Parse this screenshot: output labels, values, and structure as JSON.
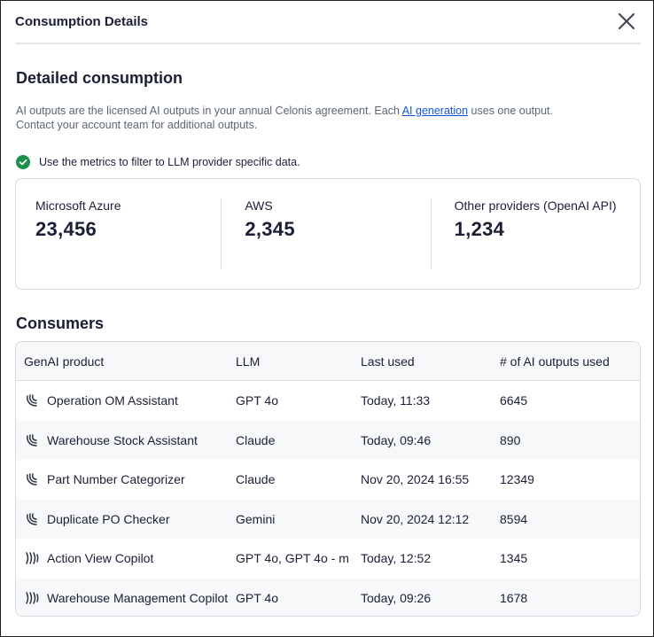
{
  "header": {
    "title": "Consumption Details"
  },
  "section": {
    "title": "Detailed consumption",
    "desc_part1": "AI outputs are the licensed AI outputs in your annual Celonis agreement. Each ",
    "desc_link": "AI generation",
    "desc_part2": " uses one output.",
    "desc_line2": "Contact your account team for additional outputs.",
    "info": "Use the metrics to filter to LLM provider specific data."
  },
  "metrics": [
    {
      "label": "Microsoft Azure",
      "value": "23,456"
    },
    {
      "label": "AWS",
      "value": "2,345"
    },
    {
      "label": "Other providers (OpenAI API)",
      "value": "1,234"
    }
  ],
  "consumers": {
    "title": "Consumers",
    "columns": [
      "GenAI product",
      "LLM",
      "Last used",
      "# of AI outputs used"
    ],
    "rows": [
      {
        "icon": "assistant-icon",
        "product": "Operation OM Assistant",
        "llm": "GPT 4o",
        "last_used": "Today, 11:33",
        "outputs": "6645"
      },
      {
        "icon": "assistant-icon",
        "product": "Warehouse Stock Assistant",
        "llm": "Claude",
        "last_used": "Today, 09:46",
        "outputs": "890"
      },
      {
        "icon": "assistant-icon",
        "product": "Part Number Categorizer",
        "llm": "Claude",
        "last_used": "Nov 20, 2024 16:55",
        "outputs": "12349"
      },
      {
        "icon": "assistant-icon",
        "product": "Duplicate PO Checker",
        "llm": "Gemini",
        "last_used": "Nov 20, 2024 12:12",
        "outputs": "8594"
      },
      {
        "icon": "copilot-icon",
        "product": "Action View Copilot",
        "llm": "GPT 4o, GPT 4o - m",
        "last_used": "Today, 12:52",
        "outputs": "1345"
      },
      {
        "icon": "copilot-icon",
        "product": "Warehouse Management Copilot",
        "llm": "GPT 4o",
        "last_used": "Today, 09:26",
        "outputs": "1678"
      }
    ]
  },
  "colors": {
    "accent": "#1554d6",
    "success": "#1a8f4a",
    "text": "#1a1f36",
    "muted": "#5c6676",
    "border": "#d6dae0"
  }
}
